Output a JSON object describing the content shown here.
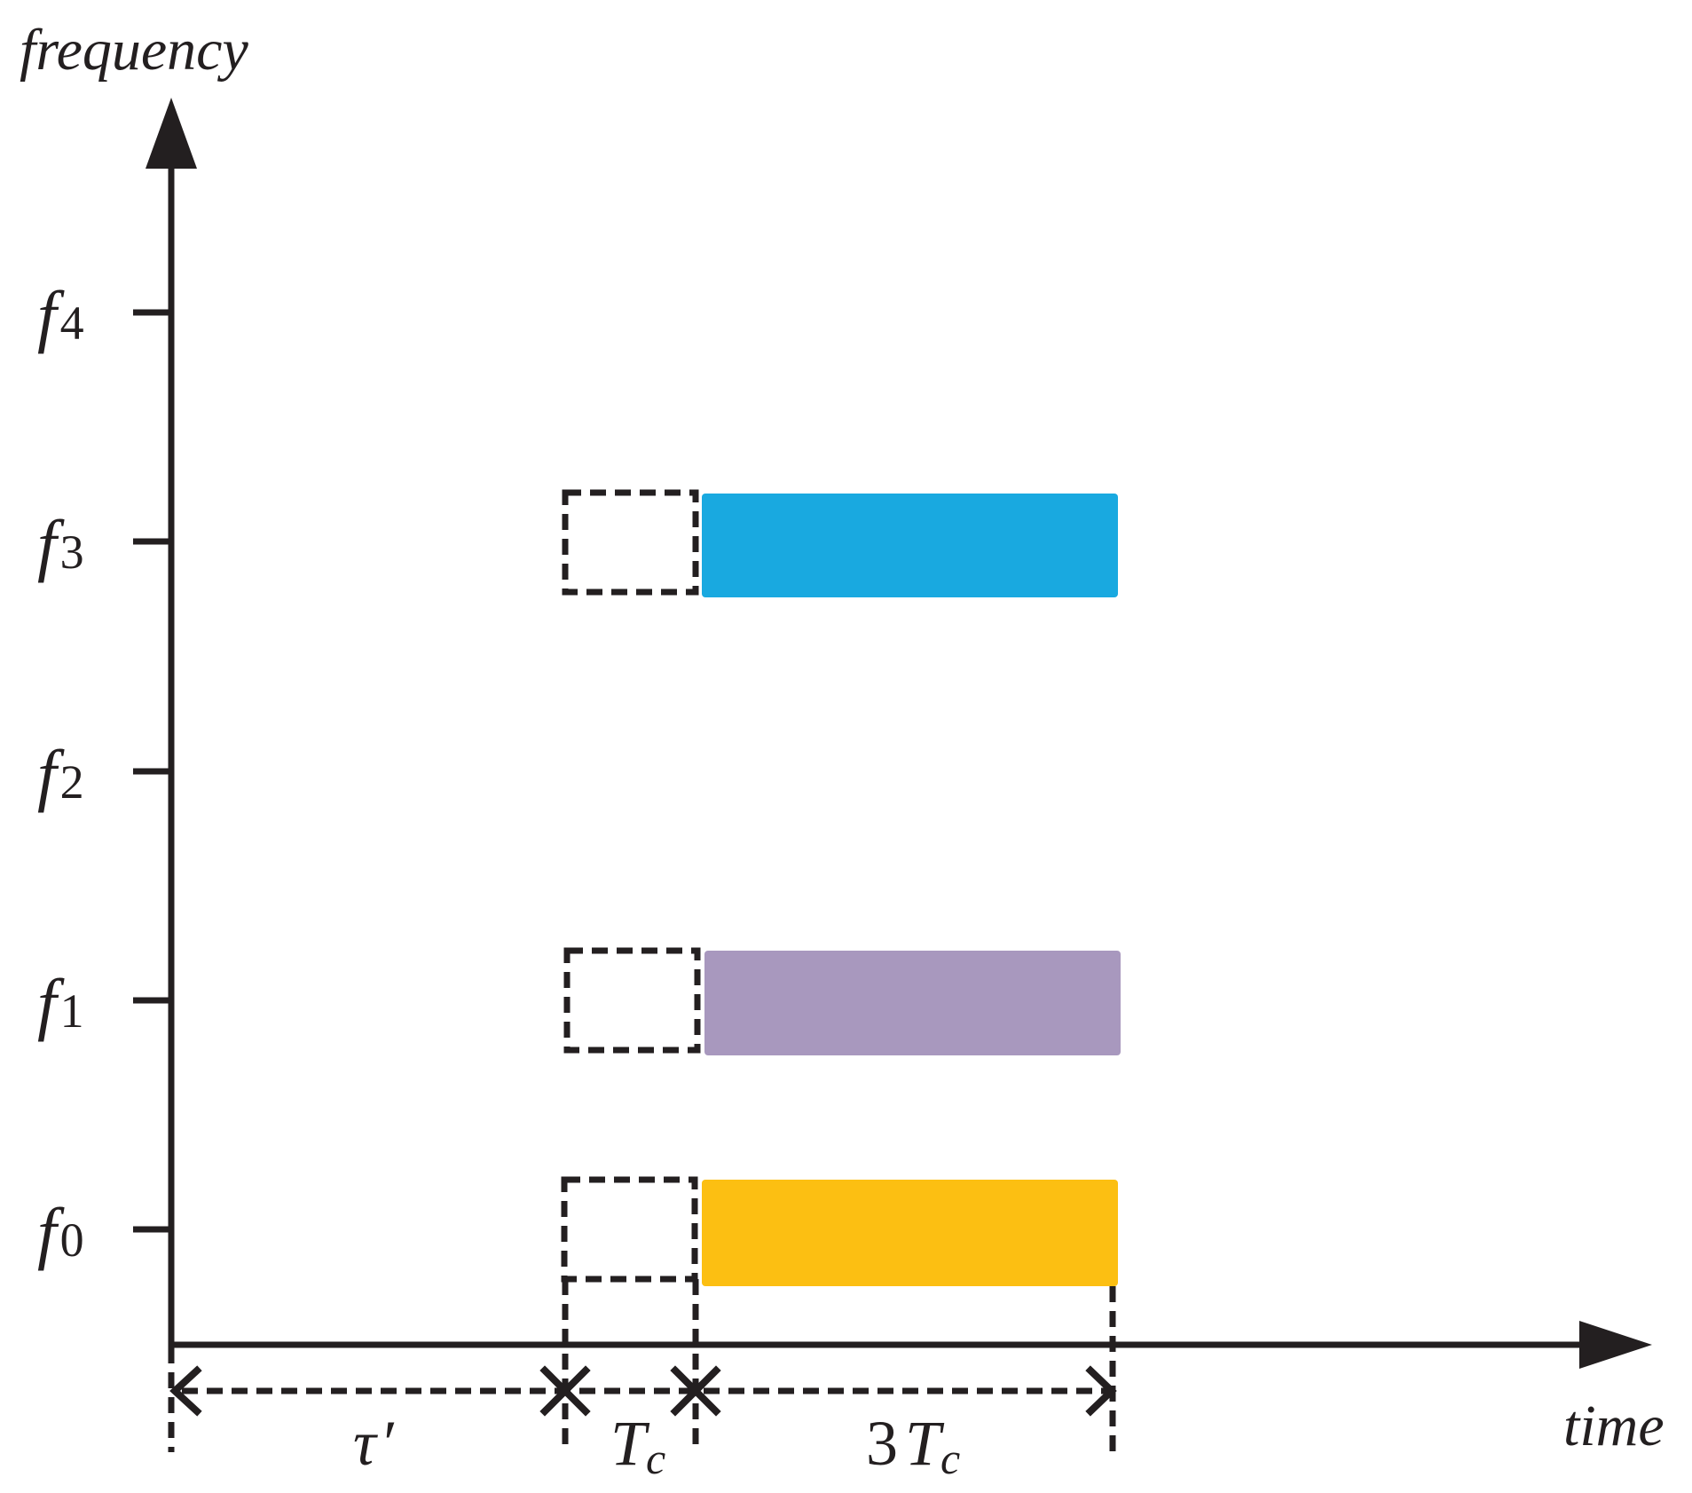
{
  "axes": {
    "y_label": "frequency",
    "x_label": "time"
  },
  "frequency_ticks": [
    {
      "sym": "f",
      "sub": "4"
    },
    {
      "sym": "f",
      "sub": "3"
    },
    {
      "sym": "f",
      "sub": "2"
    },
    {
      "sym": "f",
      "sub": "1"
    },
    {
      "sym": "f",
      "sub": "0"
    }
  ],
  "signals": [
    {
      "level": "f3",
      "color": "#19a9e0"
    },
    {
      "level": "f1",
      "color": "#a898be"
    },
    {
      "level": "f0",
      "color": "#fcbf12"
    }
  ],
  "intervals": {
    "tau": {
      "sym": "τ",
      "prime": "′"
    },
    "tc": {
      "sym": "T",
      "sub": "c"
    },
    "three_tc": {
      "coef": "3",
      "sym": "T",
      "sub": "c"
    }
  },
  "colors": {
    "ink": "#231f20",
    "f3": "#19a9e0",
    "f1": "#a898be",
    "f0": "#fcbf12"
  }
}
